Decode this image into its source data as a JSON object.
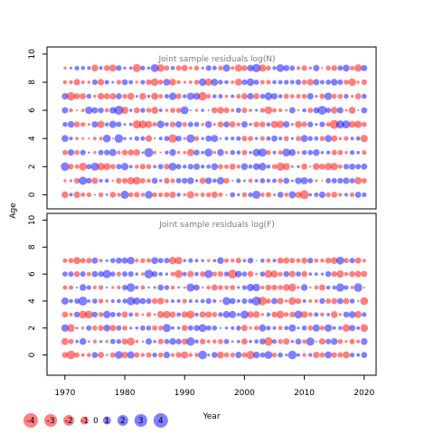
{
  "chart_data": [
    {
      "type": "scatter",
      "title": "Joint sample residuals log(N)",
      "ylabel": "Age",
      "xlim": [
        1967,
        2022
      ],
      "ylim": [
        -1,
        10.5
      ],
      "x_ticks": [
        1970,
        1980,
        1990,
        2000,
        2010,
        2020
      ],
      "y_ticks": [
        0,
        2,
        4,
        6,
        8,
        10
      ],
      "years": [
        1970,
        2020
      ],
      "ages": [
        0,
        9
      ],
      "pattern_seed": 11
    },
    {
      "type": "scatter",
      "title": "Joint sample residuals log(F)",
      "xlabel": "Year",
      "ylabel": "Age",
      "xlim": [
        1967,
        2022
      ],
      "ylim": [
        -1.5,
        10.5
      ],
      "x_ticks": [
        1970,
        1980,
        1990,
        2000,
        2010,
        2020
      ],
      "y_ticks": [
        0,
        2,
        4,
        6,
        8,
        10
      ],
      "years": [
        1970,
        2020
      ],
      "ages": [
        0,
        7
      ],
      "pattern_seed": 37
    }
  ],
  "legend": {
    "entries": [
      {
        "value": -4,
        "label": "-4"
      },
      {
        "value": -3,
        "label": "-3"
      },
      {
        "value": -2,
        "label": "-2"
      },
      {
        "value": -1,
        "label": "-1"
      },
      {
        "value": 0,
        "label": "0"
      },
      {
        "value": 1,
        "label": "1"
      },
      {
        "value": 2,
        "label": "2"
      },
      {
        "value": 3,
        "label": "3"
      },
      {
        "value": 4,
        "label": "4"
      }
    ]
  },
  "colors": {
    "negative": "#ff0000",
    "positive": "#0000ff",
    "fill_opacity": 0.5,
    "axis": "#000000",
    "title_text": "#7a7a7a"
  },
  "axis_labels": {
    "shared_y": "Age",
    "x": "Year"
  }
}
